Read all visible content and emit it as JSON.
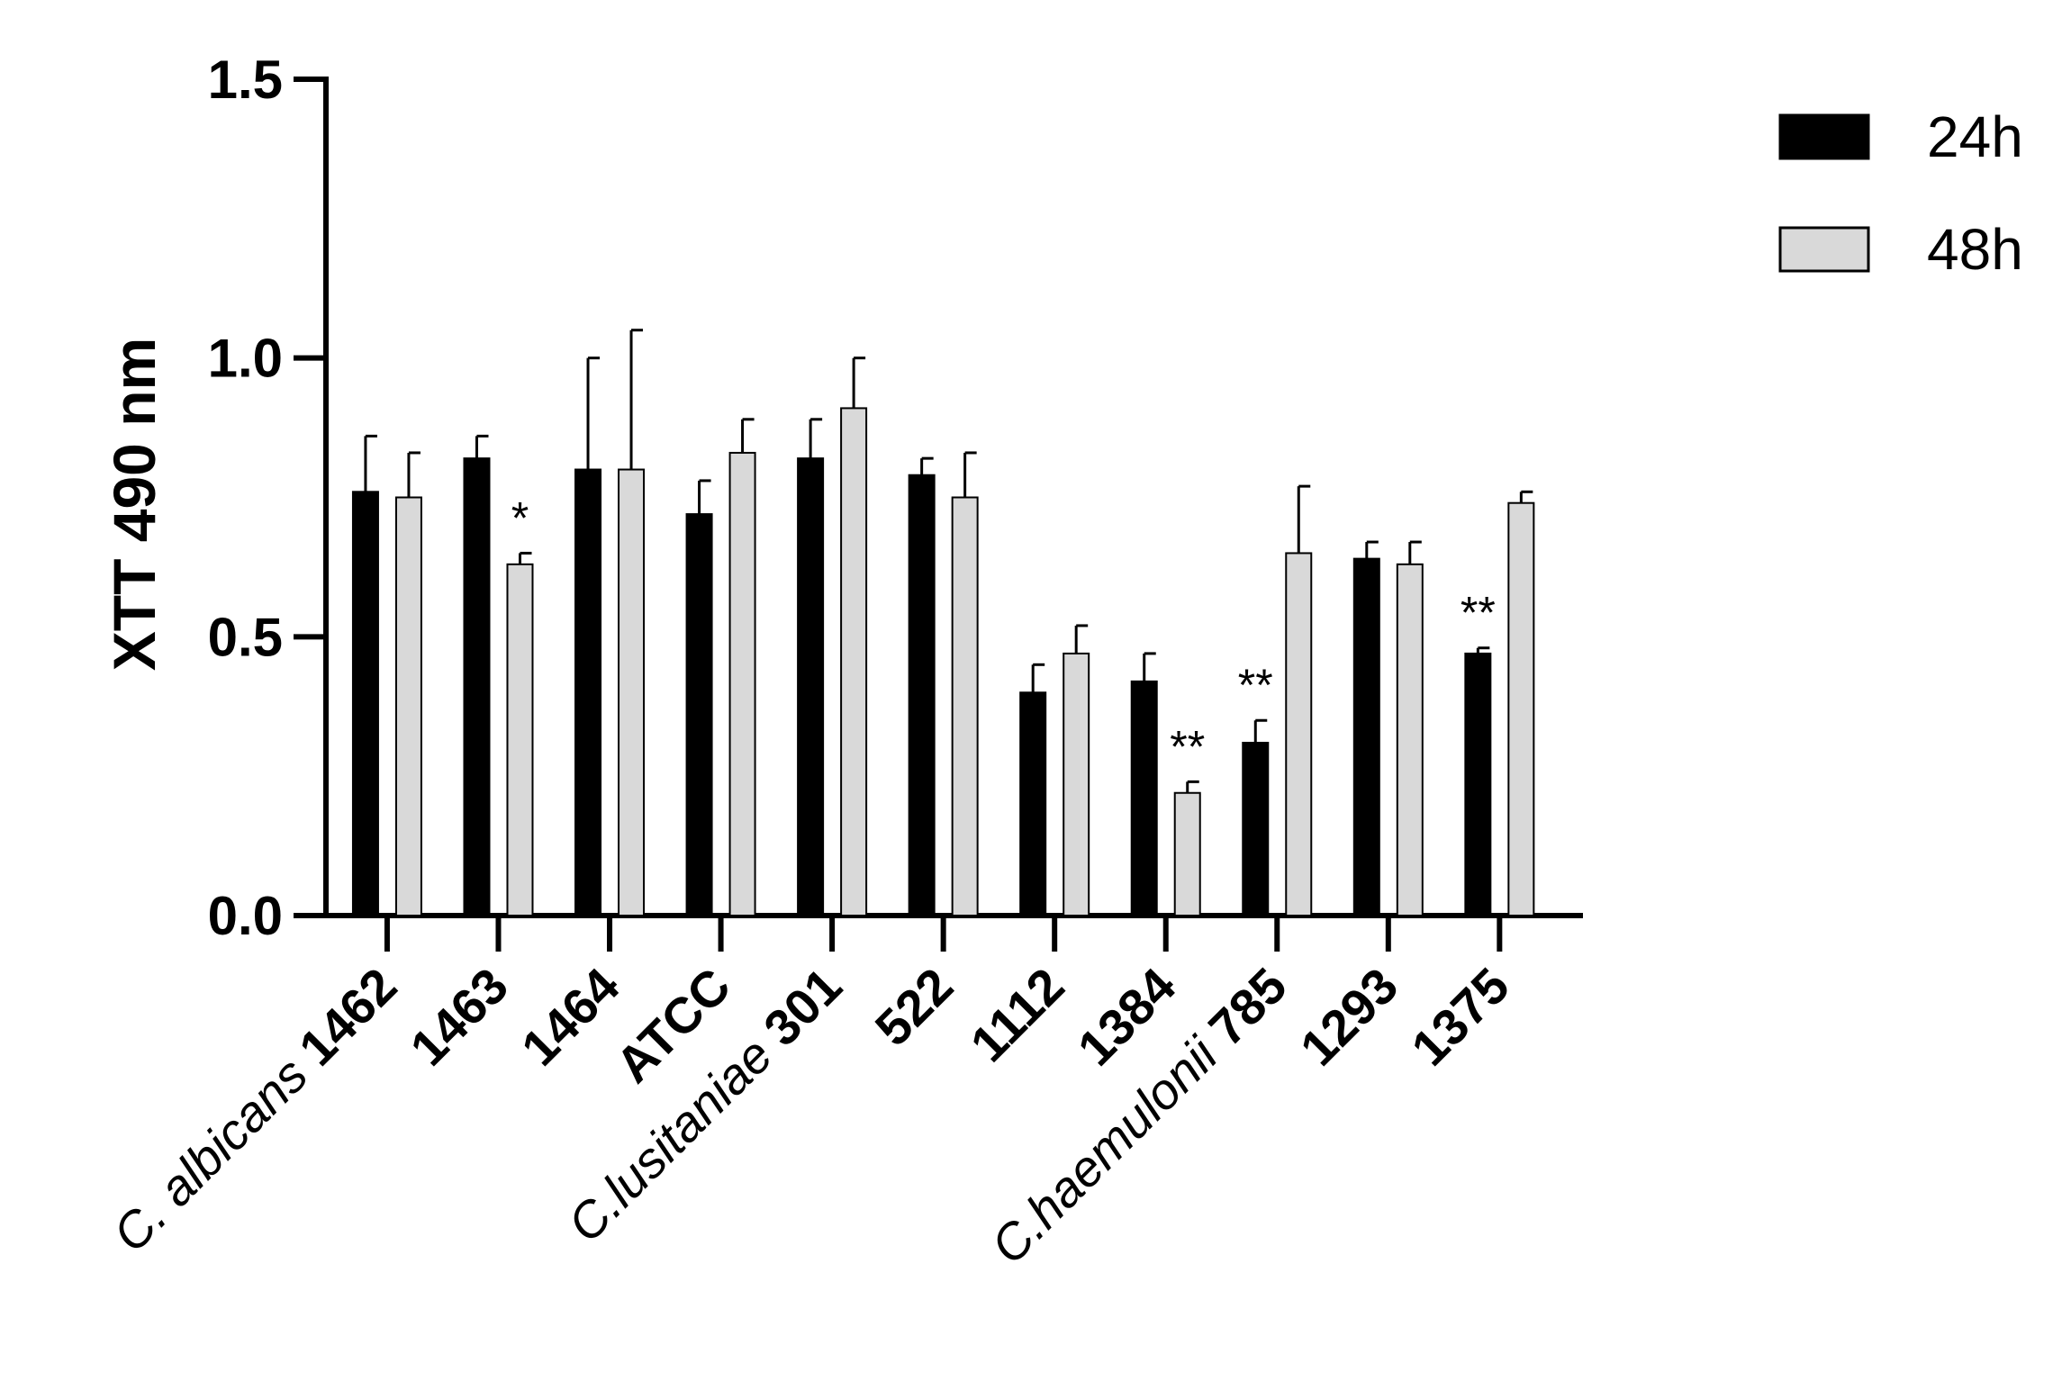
{
  "chart_data": {
    "type": "bar",
    "ylabel": "XTT 490 nm",
    "ylim": [
      0,
      1.5
    ],
    "yticks": [
      "0.0",
      "0.5",
      "1.0",
      "1.5"
    ],
    "categories": [
      {
        "species": "C. albicans",
        "strain": "1462"
      },
      {
        "species": "",
        "strain": "1463"
      },
      {
        "species": "",
        "strain": "1464"
      },
      {
        "species": "",
        "strain": "ATCC"
      },
      {
        "species": "C.lusitaniae",
        "strain": "301"
      },
      {
        "species": "",
        "strain": "522"
      },
      {
        "species": "",
        "strain": "1112"
      },
      {
        "species": "",
        "strain": "1384"
      },
      {
        "species": "C.haemulonii",
        "strain": "785"
      },
      {
        "species": "",
        "strain": "1293"
      },
      {
        "species": "",
        "strain": "1375"
      }
    ],
    "series": [
      {
        "name": "24h",
        "color": "#000000",
        "values": [
          0.76,
          0.82,
          0.8,
          0.72,
          0.82,
          0.79,
          0.4,
          0.42,
          0.31,
          0.64,
          0.47
        ],
        "errors": [
          0.1,
          0.04,
          0.2,
          0.06,
          0.07,
          0.03,
          0.05,
          0.05,
          0.04,
          0.03,
          0.01
        ],
        "significance": [
          "",
          "",
          "",
          "",
          "",
          "",
          "",
          "",
          "**",
          "",
          "**"
        ]
      },
      {
        "name": "48h",
        "color": "#d9d9d9",
        "values": [
          0.75,
          0.63,
          0.8,
          0.83,
          0.91,
          0.75,
          0.47,
          0.22,
          0.65,
          0.63,
          0.74
        ],
        "errors": [
          0.08,
          0.02,
          0.25,
          0.06,
          0.09,
          0.08,
          0.05,
          0.02,
          0.12,
          0.04,
          0.02
        ],
        "significance": [
          "",
          "*",
          "",
          "",
          "",
          "",
          "",
          "**",
          "",
          "",
          ""
        ]
      }
    ],
    "legend_position": "top-right",
    "grid": false
  }
}
